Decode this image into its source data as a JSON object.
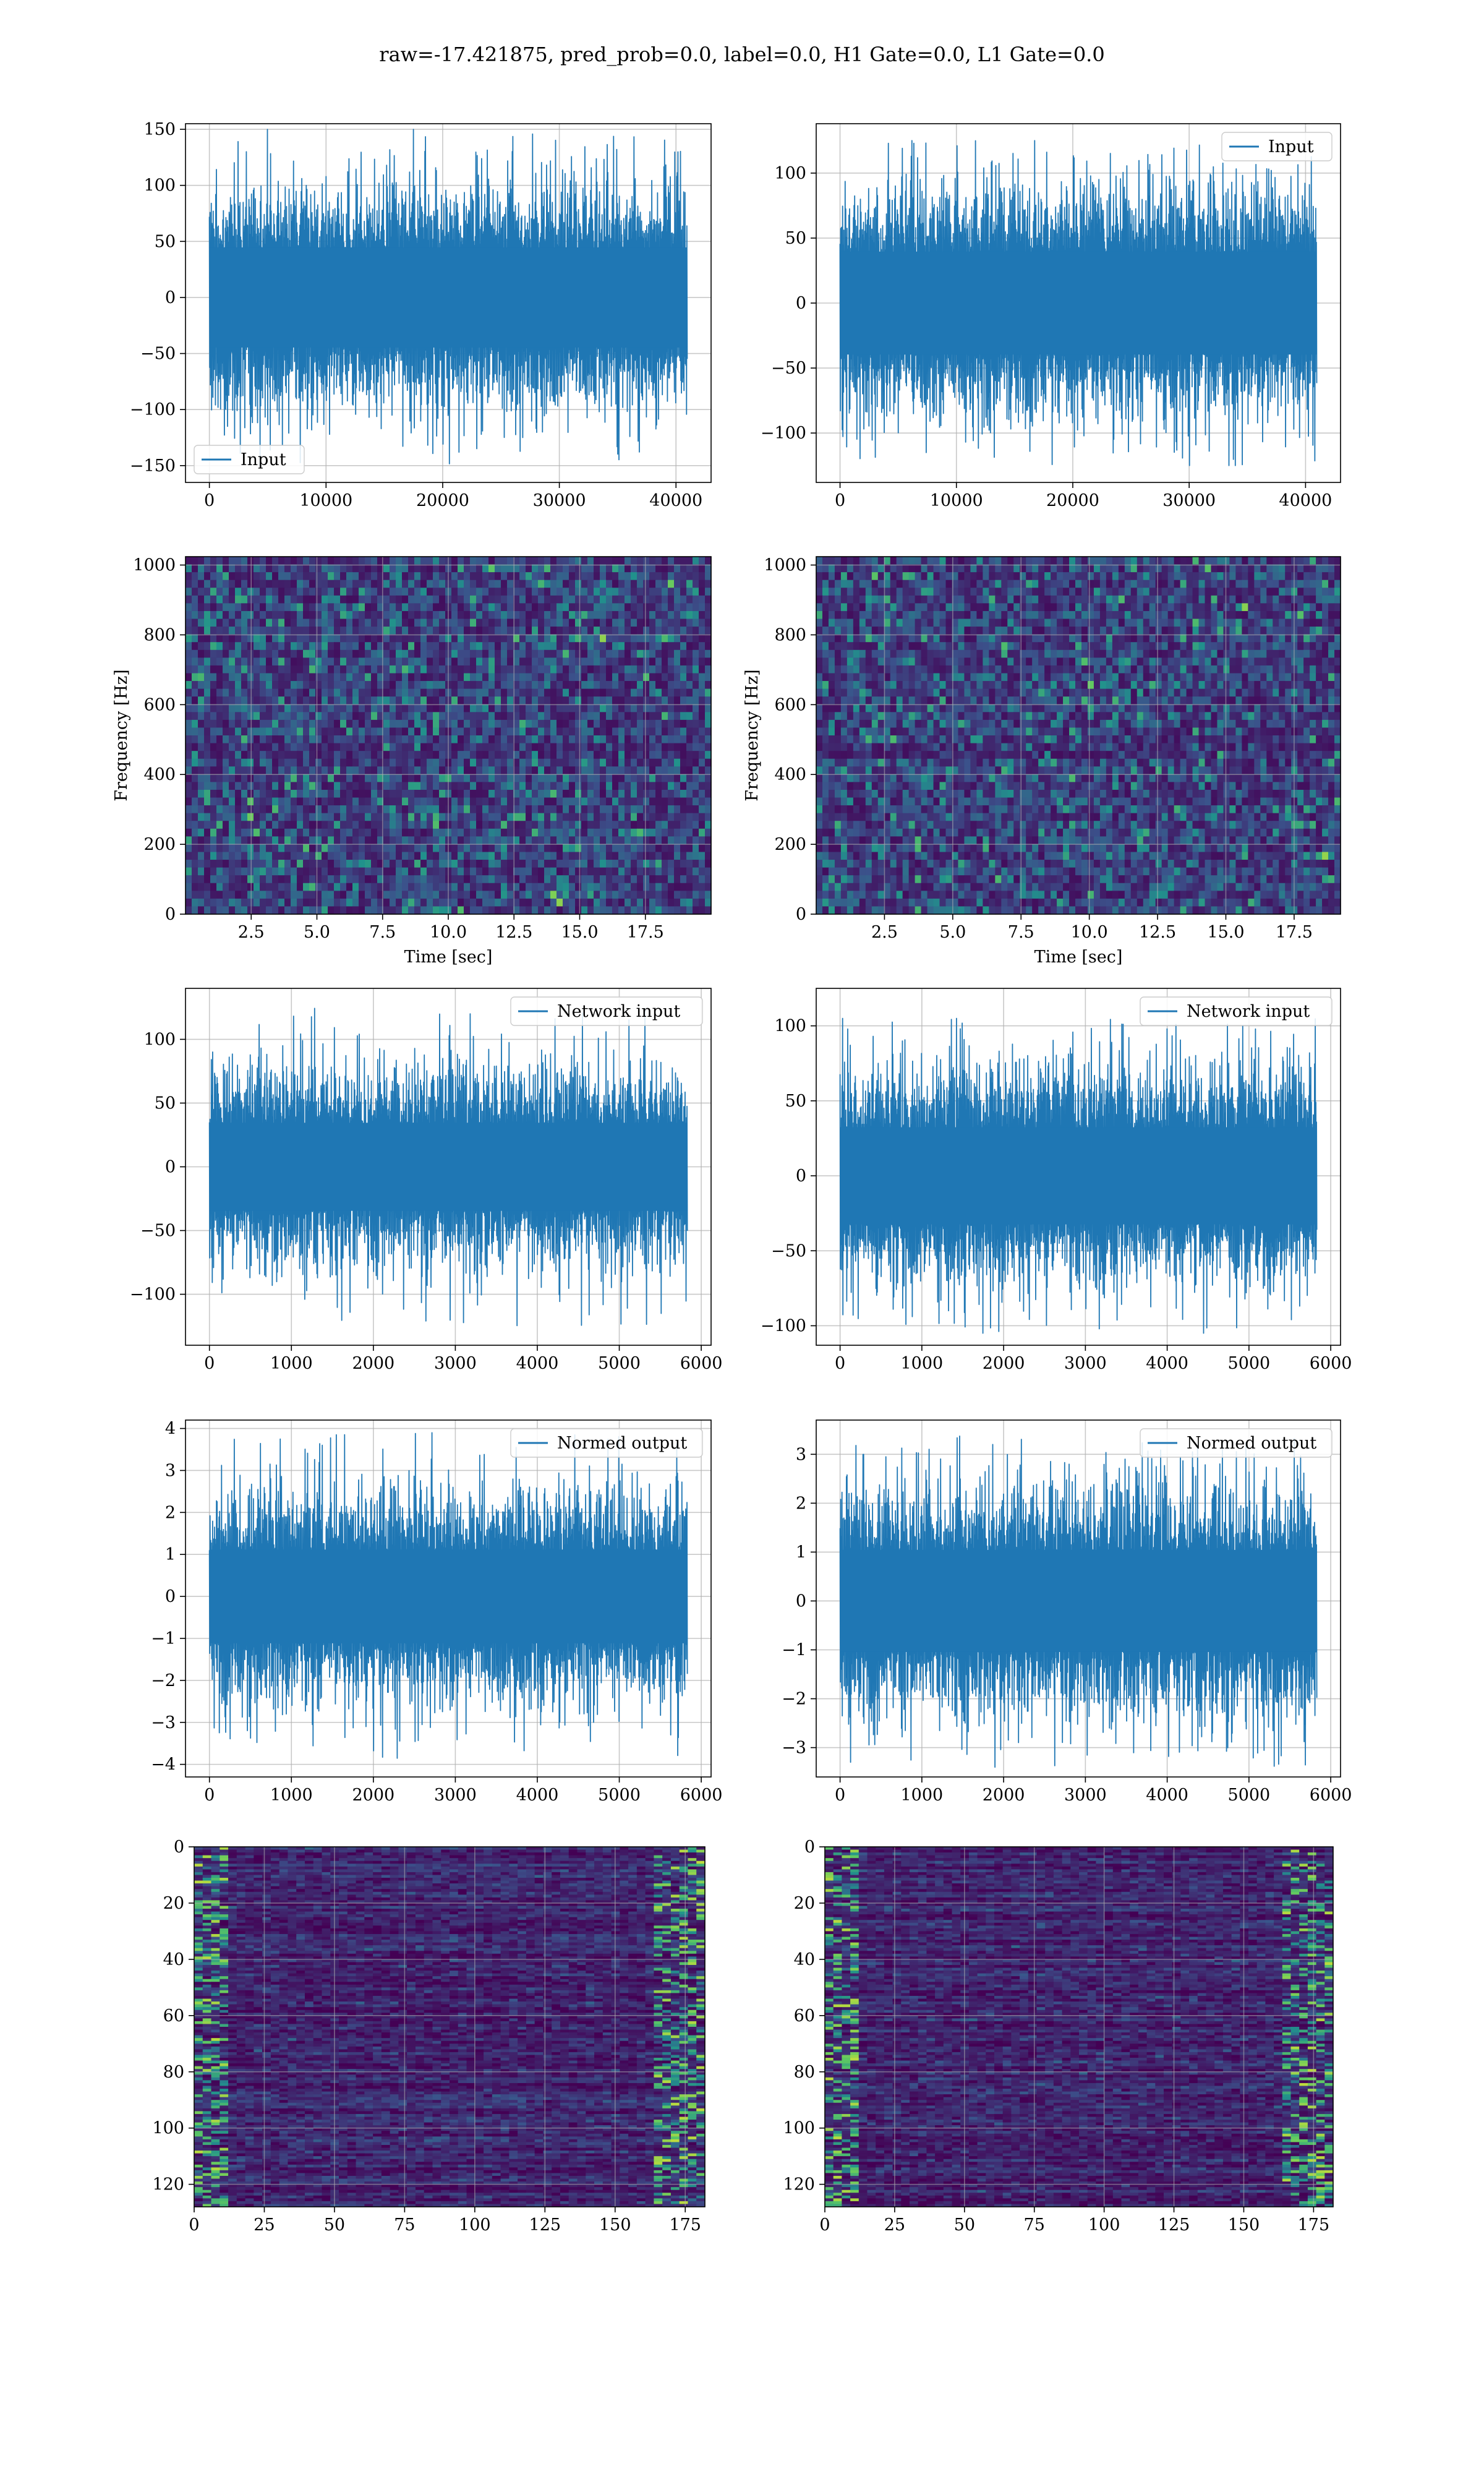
{
  "figure": {
    "suptitle": "raw=-17.421875, pred_prob=0.0, label=0.0, H1 Gate=0.0, L1 Gate=0.0"
  },
  "colors": {
    "line": "#1f77b4",
    "grid": "#b0b0b0",
    "viridis_low": "#3b1558",
    "viridis_mid": "#21918c",
    "viridis_high": "#fde725"
  },
  "chart_data": [
    {
      "id": "ts-input-h1",
      "type": "line",
      "row": 0,
      "col": 0,
      "xlim": [
        -2048,
        43008
      ],
      "ylim": [
        -165,
        155
      ],
      "xticks": [
        0,
        10000,
        20000,
        30000,
        40000
      ],
      "xtick_labels": [
        "0",
        "10000",
        "20000",
        "30000",
        "40000"
      ],
      "yticks": [
        -150,
        -100,
        -50,
        0,
        50,
        100,
        150
      ],
      "ytick_labels": [
        "−150",
        "−100",
        "−50",
        "0",
        "50",
        "100",
        "150"
      ],
      "series": [
        {
          "name": "Input",
          "x_range": [
            0,
            40960
          ],
          "amplitude_core": 62,
          "amplitude_max": 150
        }
      ],
      "legend": "lower left",
      "grid": true,
      "xlabel": "",
      "ylabel": ""
    },
    {
      "id": "ts-input-l1",
      "type": "line",
      "row": 0,
      "col": 1,
      "xlim": [
        -2048,
        43008
      ],
      "ylim": [
        -138,
        138
      ],
      "xticks": [
        0,
        10000,
        20000,
        30000,
        40000
      ],
      "xtick_labels": [
        "0",
        "10000",
        "20000",
        "30000",
        "40000"
      ],
      "yticks": [
        -100,
        -50,
        0,
        50,
        100
      ],
      "ytick_labels": [
        "−100",
        "−50",
        "0",
        "50",
        "100"
      ],
      "series": [
        {
          "name": "Input",
          "x_range": [
            0,
            40960
          ],
          "amplitude_core": 55,
          "amplitude_max": 125
        }
      ],
      "legend": "upper right",
      "grid": true,
      "xlabel": "",
      "ylabel": ""
    },
    {
      "id": "spec-h1",
      "type": "heatmap",
      "row": 1,
      "col": 0,
      "xlim": [
        0,
        20
      ],
      "ylim": [
        0,
        1024
      ],
      "xticks": [
        2.5,
        5.0,
        7.5,
        10.0,
        12.5,
        15.0,
        17.5
      ],
      "xtick_labels": [
        "2.5",
        "5.0",
        "7.5",
        "10.0",
        "12.5",
        "15.0",
        "17.5"
      ],
      "yticks": [
        0,
        200,
        400,
        600,
        800,
        1000
      ],
      "ytick_labels": [
        "0",
        "200",
        "400",
        "600",
        "800",
        "1000"
      ],
      "xlabel": "Time [sec]",
      "ylabel": "Frequency [Hz]",
      "colormap": "viridis",
      "grid": true
    },
    {
      "id": "spec-l1",
      "type": "heatmap",
      "row": 1,
      "col": 1,
      "xlim": [
        0,
        19.2
      ],
      "ylim": [
        0,
        1024
      ],
      "xticks": [
        2.5,
        5.0,
        7.5,
        10.0,
        12.5,
        15.0,
        17.5
      ],
      "xtick_labels": [
        "2.5",
        "5.0",
        "7.5",
        "10.0",
        "12.5",
        "15.0",
        "17.5"
      ],
      "yticks": [
        0,
        200,
        400,
        600,
        800,
        1000
      ],
      "ytick_labels": [
        "0",
        "200",
        "400",
        "600",
        "800",
        "1000"
      ],
      "xlabel": "Time [sec]",
      "ylabel": "Frequency [Hz]",
      "colormap": "viridis",
      "grid": true
    },
    {
      "id": "ts-netin-h1",
      "type": "line",
      "row": 2,
      "col": 0,
      "xlim": [
        -292,
        6120
      ],
      "ylim": [
        -140,
        140
      ],
      "xticks": [
        0,
        1000,
        2000,
        3000,
        4000,
        5000,
        6000
      ],
      "xtick_labels": [
        "0",
        "1000",
        "2000",
        "3000",
        "4000",
        "5000",
        "6000"
      ],
      "yticks": [
        -100,
        -50,
        0,
        50,
        100
      ],
      "ytick_labels": [
        "−100",
        "−50",
        "0",
        "50",
        "100"
      ],
      "series": [
        {
          "name": "Network input",
          "x_range": [
            0,
            5830
          ],
          "amplitude_core": 48,
          "amplitude_max": 125
        }
      ],
      "legend": "upper right",
      "grid": true,
      "xlabel": "",
      "ylabel": ""
    },
    {
      "id": "ts-netin-l1",
      "type": "line",
      "row": 2,
      "col": 1,
      "xlim": [
        -292,
        6120
      ],
      "ylim": [
        -113,
        125
      ],
      "xticks": [
        0,
        1000,
        2000,
        3000,
        4000,
        5000,
        6000
      ],
      "xtick_labels": [
        "0",
        "1000",
        "2000",
        "3000",
        "4000",
        "5000",
        "6000"
      ],
      "yticks": [
        -100,
        -50,
        0,
        50,
        100
      ],
      "ytick_labels": [
        "−100",
        "−50",
        "0",
        "50",
        "100"
      ],
      "series": [
        {
          "name": "Network input",
          "x_range": [
            0,
            5830
          ],
          "amplitude_core": 45,
          "amplitude_max": 105
        }
      ],
      "legend": "upper right",
      "grid": true,
      "xlabel": "",
      "ylabel": ""
    },
    {
      "id": "ts-normed-h1",
      "type": "line",
      "row": 3,
      "col": 0,
      "xlim": [
        -292,
        6120
      ],
      "ylim": [
        -4.3,
        4.2
      ],
      "xticks": [
        0,
        1000,
        2000,
        3000,
        4000,
        5000,
        6000
      ],
      "xtick_labels": [
        "0",
        "1000",
        "2000",
        "3000",
        "4000",
        "5000",
        "6000"
      ],
      "yticks": [
        -4,
        -3,
        -2,
        -1,
        0,
        1,
        2,
        3,
        4
      ],
      "ytick_labels": [
        "−4",
        "−3",
        "−2",
        "−1",
        "0",
        "1",
        "2",
        "3",
        "4"
      ],
      "series": [
        {
          "name": "Normed output",
          "x_range": [
            0,
            5830
          ],
          "amplitude_core": 1.55,
          "amplitude_max": 3.9
        }
      ],
      "legend": "upper right",
      "grid": true,
      "xlabel": "",
      "ylabel": ""
    },
    {
      "id": "ts-normed-l1",
      "type": "line",
      "row": 3,
      "col": 1,
      "xlim": [
        -292,
        6120
      ],
      "ylim": [
        -3.6,
        3.7
      ],
      "xticks": [
        0,
        1000,
        2000,
        3000,
        4000,
        5000,
        6000
      ],
      "xtick_labels": [
        "0",
        "1000",
        "2000",
        "3000",
        "4000",
        "5000",
        "6000"
      ],
      "yticks": [
        -3,
        -2,
        -1,
        0,
        1,
        2,
        3
      ],
      "ytick_labels": [
        "−3",
        "−2",
        "−1",
        "0",
        "1",
        "2",
        "3"
      ],
      "series": [
        {
          "name": "Normed output",
          "x_range": [
            0,
            5830
          ],
          "amplitude_core": 1.45,
          "amplitude_max": 3.4
        }
      ],
      "legend": "upper right",
      "grid": true,
      "xlabel": "",
      "ylabel": ""
    },
    {
      "id": "feat-h1",
      "type": "heatmap",
      "row": 4,
      "col": 0,
      "xlim": [
        0,
        182
      ],
      "ylim": [
        128,
        0
      ],
      "xticks": [
        0,
        25,
        50,
        75,
        100,
        125,
        150,
        175
      ],
      "xtick_labels": [
        "0",
        "25",
        "50",
        "75",
        "100",
        "125",
        "150",
        "175"
      ],
      "yticks": [
        0,
        20,
        40,
        60,
        80,
        100,
        120
      ],
      "ytick_labels": [
        "0",
        "20",
        "40",
        "60",
        "80",
        "100",
        "120"
      ],
      "colormap": "viridis",
      "grid": true,
      "xlabel": "",
      "ylabel": ""
    },
    {
      "id": "feat-l1",
      "type": "heatmap",
      "row": 4,
      "col": 1,
      "xlim": [
        0,
        182
      ],
      "ylim": [
        128,
        0
      ],
      "xticks": [
        0,
        25,
        50,
        75,
        100,
        125,
        150,
        175
      ],
      "xtick_labels": [
        "0",
        "25",
        "50",
        "75",
        "100",
        "125",
        "150",
        "175"
      ],
      "yticks": [
        0,
        20,
        40,
        60,
        80,
        100,
        120
      ],
      "ytick_labels": [
        "0",
        "20",
        "40",
        "60",
        "80",
        "100",
        "120"
      ],
      "colormap": "viridis",
      "grid": true,
      "xlabel": "",
      "ylabel": ""
    }
  ]
}
